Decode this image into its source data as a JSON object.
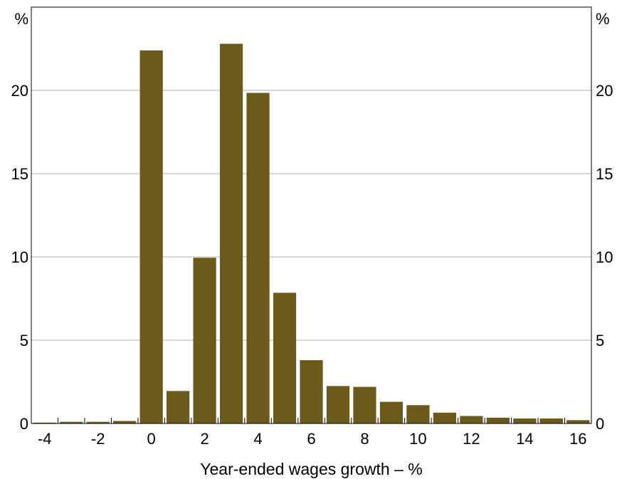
{
  "chart_data": {
    "type": "bar",
    "title": "",
    "xlabel": "Year-ended wages growth – %",
    "ylabel_left": "%",
    "ylabel_right": "%",
    "categories": [
      -4,
      -3,
      -2,
      -1,
      0,
      1,
      2,
      3,
      4,
      5,
      6,
      7,
      8,
      9,
      10,
      11,
      12,
      13,
      14,
      15,
      16
    ],
    "values": [
      0.05,
      0.1,
      0.1,
      0.15,
      22.4,
      1.95,
      9.95,
      22.8,
      19.85,
      7.85,
      3.8,
      2.25,
      2.2,
      1.3,
      1.1,
      0.65,
      0.45,
      0.35,
      0.3,
      0.3,
      0.2
    ],
    "x_ticks": [
      -4,
      -2,
      0,
      2,
      4,
      6,
      8,
      10,
      12,
      14,
      16
    ],
    "x_tick_labels": [
      "-4",
      "-2",
      "0",
      "2",
      "4",
      "6",
      "8",
      "10",
      "12",
      "14",
      "16"
    ],
    "xlim": [
      -4.5,
      16.5
    ],
    "y_ticks": [
      0,
      5,
      10,
      15,
      20
    ],
    "y_tick_labels": [
      "0",
      "5",
      "10",
      "15",
      "20"
    ],
    "ylim": [
      0,
      25
    ],
    "grid": true,
    "legend": "none",
    "bar_color": "#6b5a1b",
    "grid_color": "#b0b0b0"
  }
}
